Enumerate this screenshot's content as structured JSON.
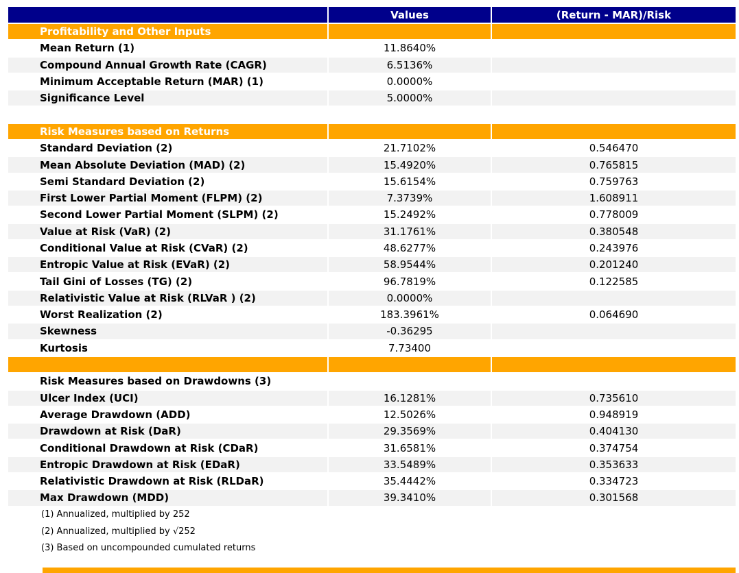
{
  "colors": {
    "header_bg": "#00008B",
    "section_bg": "#FFA500",
    "alt_row_bg": "#F2F2F2",
    "header_text": "#ffffff",
    "body_text": "#000000"
  },
  "table": {
    "columns": [
      "",
      "Values",
      "(Return - MAR)/Risk"
    ],
    "rows": [
      {
        "type": "section",
        "label": "Profitability and Other Inputs",
        "value": "",
        "ratio": ""
      },
      {
        "type": "data",
        "shade": "p",
        "label": "Mean Return (1)",
        "value": "11.8640%",
        "ratio": ""
      },
      {
        "type": "data",
        "shade": "a",
        "label": "Compound Annual Growth Rate (CAGR)",
        "value": "6.5136%",
        "ratio": ""
      },
      {
        "type": "data",
        "shade": "p",
        "label": "Minimum Acceptable Return (MAR) (1)",
        "value": "0.0000%",
        "ratio": ""
      },
      {
        "type": "data",
        "shade": "a",
        "label": "Significance Level",
        "value": "5.0000%",
        "ratio": ""
      },
      {
        "type": "spacer",
        "label": "",
        "value": "",
        "ratio": ""
      },
      {
        "type": "section",
        "label": "Risk Measures based on Returns",
        "value": "",
        "ratio": ""
      },
      {
        "type": "data",
        "shade": "p",
        "label": "Standard Deviation (2)",
        "value": "21.7102%",
        "ratio": "0.546470"
      },
      {
        "type": "data",
        "shade": "a",
        "label": "Mean Absolute Deviation (MAD) (2)",
        "value": "15.4920%",
        "ratio": "0.765815"
      },
      {
        "type": "data",
        "shade": "p",
        "label": "Semi Standard Deviation (2)",
        "value": "15.6154%",
        "ratio": "0.759763"
      },
      {
        "type": "data",
        "shade": "a",
        "label": "First Lower Partial Moment (FLPM) (2)",
        "value": "7.3739%",
        "ratio": "1.608911"
      },
      {
        "type": "data",
        "shade": "p",
        "label": "Second Lower Partial Moment (SLPM) (2)",
        "value": "15.2492%",
        "ratio": "0.778009"
      },
      {
        "type": "data",
        "shade": "a",
        "label": "Value at Risk (VaR) (2)",
        "value": "31.1761%",
        "ratio": "0.380548"
      },
      {
        "type": "data",
        "shade": "p",
        "label": "Conditional Value at Risk (CVaR) (2)",
        "value": "48.6277%",
        "ratio": "0.243976"
      },
      {
        "type": "data",
        "shade": "a",
        "label": "Entropic Value at Risk (EVaR) (2)",
        "value": "58.9544%",
        "ratio": "0.201240"
      },
      {
        "type": "data",
        "shade": "p",
        "label": "Tail Gini of Losses (TG) (2)",
        "value": "96.7819%",
        "ratio": "0.122585"
      },
      {
        "type": "data",
        "shade": "a",
        "label": "Relativistic Value at Risk (RLVaR ) (2)",
        "value": "0.0000%",
        "ratio": ""
      },
      {
        "type": "data",
        "shade": "p",
        "label": "Worst Realization (2)",
        "value": "183.3961%",
        "ratio": "0.064690"
      },
      {
        "type": "data",
        "shade": "a",
        "label": "Skewness",
        "value": "-0.36295",
        "ratio": ""
      },
      {
        "type": "data",
        "shade": "p",
        "label": "Kurtosis",
        "value": "7.73400",
        "ratio": ""
      },
      {
        "type": "section",
        "label": "",
        "value": "",
        "ratio": ""
      },
      {
        "type": "subheader",
        "shade": "p",
        "label": "Risk Measures based on Drawdowns (3)",
        "value": "",
        "ratio": ""
      },
      {
        "type": "data",
        "shade": "a",
        "label": "Ulcer Index (UCI)",
        "value": "16.1281%",
        "ratio": "0.735610"
      },
      {
        "type": "data",
        "shade": "p",
        "label": "Average Drawdown (ADD)",
        "value": "12.5026%",
        "ratio": "0.948919"
      },
      {
        "type": "data",
        "shade": "a",
        "label": "Drawdown at Risk (DaR)",
        "value": "29.3569%",
        "ratio": "0.404130"
      },
      {
        "type": "data",
        "shade": "p",
        "label": "Conditional Drawdown at Risk (CDaR)",
        "value": "31.6581%",
        "ratio": "0.374754"
      },
      {
        "type": "data",
        "shade": "a",
        "label": "Entropic Drawdown at Risk (EDaR)",
        "value": "33.5489%",
        "ratio": "0.353633"
      },
      {
        "type": "data",
        "shade": "p",
        "label": "Relativistic Drawdown at Risk (RLDaR)",
        "value": "35.4442%",
        "ratio": "0.334723"
      },
      {
        "type": "data",
        "shade": "a",
        "label": "Max Drawdown (MDD)",
        "value": "39.3410%",
        "ratio": "0.301568"
      },
      {
        "type": "footnote",
        "label": "(1) Annualized, multiplied by 252",
        "value": "",
        "ratio": ""
      },
      {
        "type": "footnote",
        "label": "(2) Annualized, multiplied by √252",
        "value": "",
        "ratio": ""
      },
      {
        "type": "footnote",
        "label": "(3) Based on uncompounded cumulated returns",
        "value": "",
        "ratio": ""
      }
    ]
  }
}
